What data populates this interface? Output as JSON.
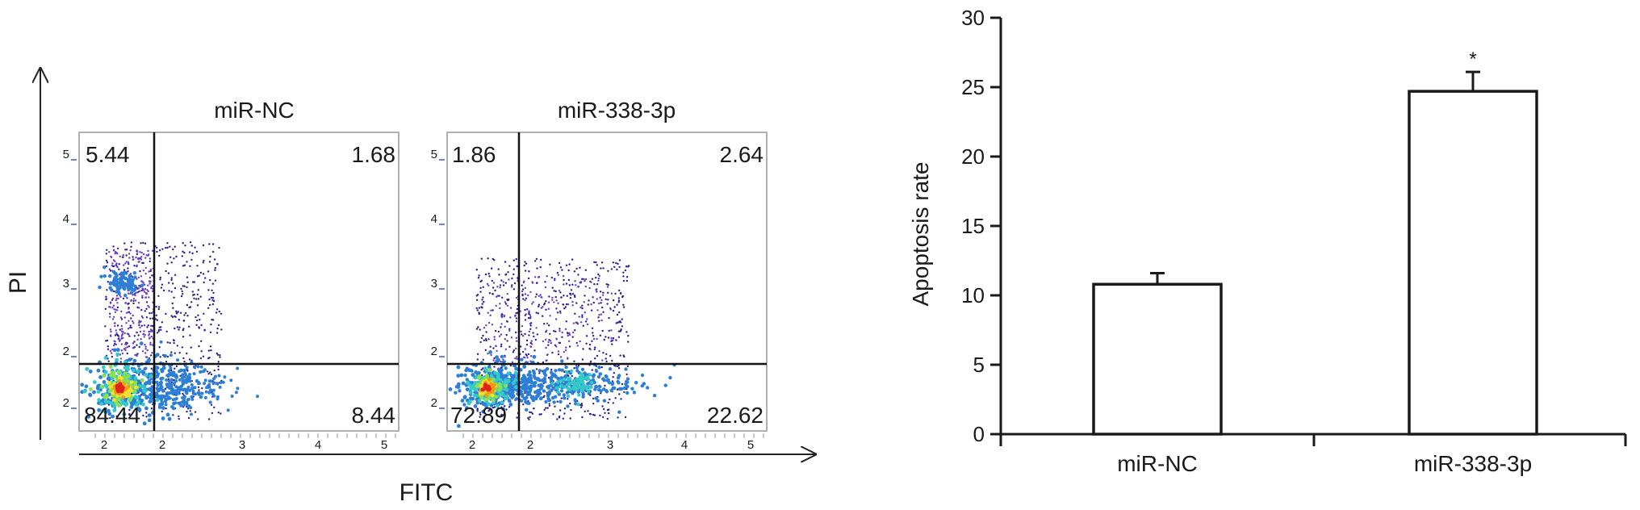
{
  "colors": {
    "ink": "#1a1a1a",
    "plot_border": "#b0b0b0",
    "tick_blue": "#3a5fb0",
    "gate": "#111111",
    "scatter_scale": [
      "#2a1f8f",
      "#6a3cc2",
      "#2d7fd6",
      "#34c9c9",
      "#8be04e",
      "#f2e32a",
      "#f29a1a",
      "#e3221b"
    ]
  },
  "flow_panel": {
    "y_axis_label": "PI",
    "x_axis_label": "FITC"
  },
  "chart_data": [
    {
      "type": "scatter",
      "title": "miR-NC",
      "xlabel": "FITC",
      "ylabel": "PI",
      "x_tick_labels": [
        "2",
        "2",
        "3",
        "4",
        "5"
      ],
      "y_tick_labels": [
        "5",
        "4",
        "3",
        "2",
        "2"
      ],
      "quadrant_values": {
        "upper_left": "5.44",
        "upper_right": "1.68",
        "lower_left": "84.44",
        "lower_right": "8.44"
      }
    },
    {
      "type": "scatter",
      "title": "miR-338-3p",
      "xlabel": "FITC",
      "ylabel": "PI",
      "x_tick_labels": [
        "2",
        "2",
        "3",
        "4",
        "5"
      ],
      "y_tick_labels": [
        "5",
        "4",
        "3",
        "2",
        "2"
      ],
      "quadrant_values": {
        "upper_left": "1.86",
        "upper_right": "2.64",
        "lower_left": "72.89",
        "lower_right": "22.62"
      }
    },
    {
      "type": "bar",
      "categories": [
        "miR-NC",
        "miR-338-3p"
      ],
      "values": [
        10.8,
        24.7
      ],
      "errors": [
        0.8,
        1.4
      ],
      "significance": [
        "",
        "*"
      ],
      "ylabel": "Apoptosis rate",
      "xlabel": "",
      "ylim": [
        0,
        30
      ],
      "yticks": [
        0,
        5,
        10,
        15,
        20,
        25,
        30
      ]
    }
  ]
}
